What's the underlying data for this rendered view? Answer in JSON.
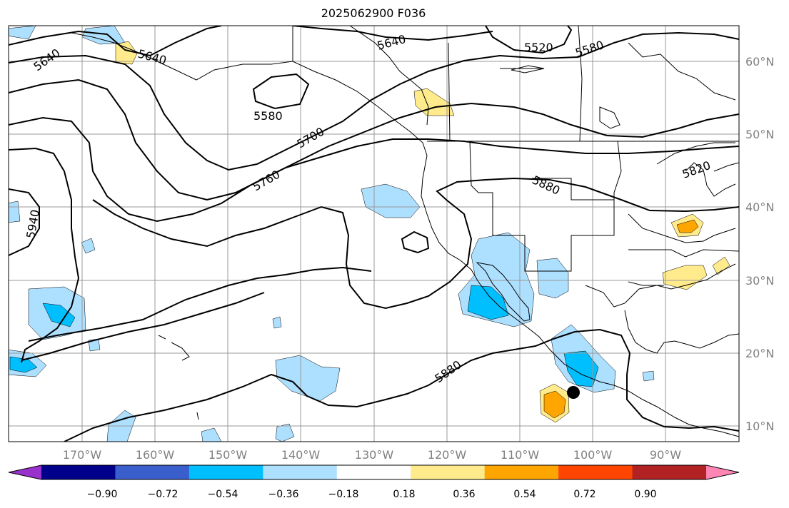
{
  "title": "2025062900 F036",
  "lon_labels": [
    "170°W",
    "160°W",
    "150°W",
    "140°W",
    "130°W",
    "120°W",
    "110°W",
    "100°W",
    "90°W"
  ],
  "lat_labels": [
    "60°N",
    "50°N",
    "40°N",
    "30°N",
    "20°N",
    "10°N"
  ],
  "colorbar": {
    "tick_labels": [
      "−0.90",
      "−0.72",
      "−0.54",
      "−0.36",
      "−0.18",
      "0.18",
      "0.36",
      "0.54",
      "0.72",
      "0.90"
    ],
    "colors": [
      "#9932CC",
      "#00008B",
      "#3A5FCD",
      "#00BFFF",
      "#ADDFFF",
      "#FFFFFF",
      "#FFEB8C",
      "#FFA500",
      "#FF4500",
      "#B22222",
      "#FF86B4"
    ]
  },
  "contour_labels": [
    "5640",
    "5640",
    "5640",
    "5520",
    "5580",
    "5580",
    "5700",
    "5760",
    "5820",
    "5880",
    "5880",
    "5940"
  ],
  "marker": {
    "lon": -102.8,
    "lat": 14.6,
    "color": "#000000"
  }
}
